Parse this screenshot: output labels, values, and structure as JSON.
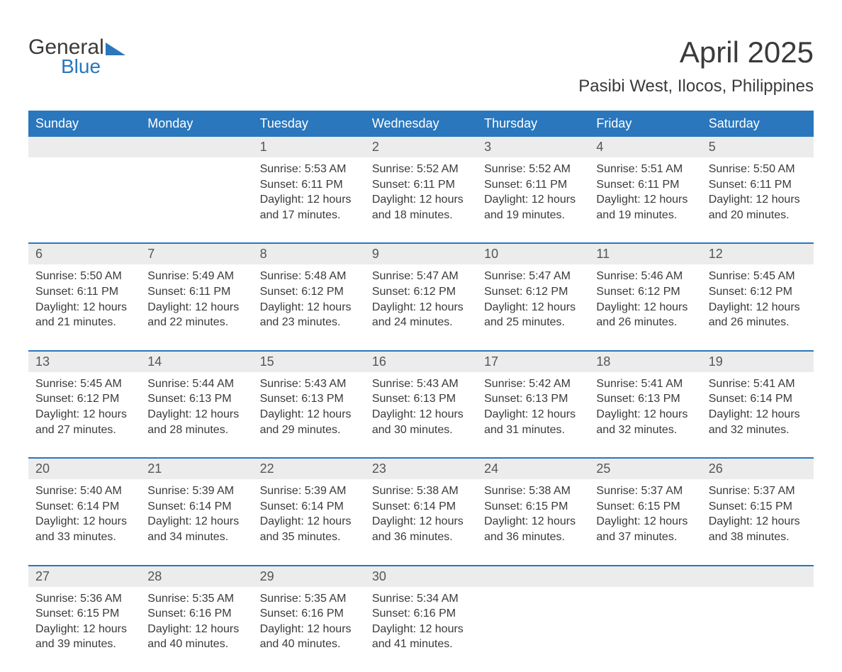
{
  "logo": {
    "text1": "General",
    "text2": "Blue"
  },
  "title": "April 2025",
  "subtitle": "Pasibi West, Ilocos, Philippines",
  "colors": {
    "header_bg": "#2a77bd",
    "header_text": "#ffffff",
    "daynum_bg": "#ececec",
    "week_border": "#2a77bd",
    "body_text": "#3a3a3a",
    "page_bg": "#ffffff",
    "logo_blue": "#2a77bd"
  },
  "typography": {
    "title_fontsize": 42,
    "subtitle_fontsize": 24,
    "dow_fontsize": 18,
    "daynum_fontsize": 18,
    "body_fontsize": 16
  },
  "days_of_week": [
    "Sunday",
    "Monday",
    "Tuesday",
    "Wednesday",
    "Thursday",
    "Friday",
    "Saturday"
  ],
  "weeks": [
    [
      null,
      null,
      {
        "n": "1",
        "sunrise": "5:53 AM",
        "sunset": "6:11 PM",
        "daylight": "12 hours and 17 minutes."
      },
      {
        "n": "2",
        "sunrise": "5:52 AM",
        "sunset": "6:11 PM",
        "daylight": "12 hours and 18 minutes."
      },
      {
        "n": "3",
        "sunrise": "5:52 AM",
        "sunset": "6:11 PM",
        "daylight": "12 hours and 19 minutes."
      },
      {
        "n": "4",
        "sunrise": "5:51 AM",
        "sunset": "6:11 PM",
        "daylight": "12 hours and 19 minutes."
      },
      {
        "n": "5",
        "sunrise": "5:50 AM",
        "sunset": "6:11 PM",
        "daylight": "12 hours and 20 minutes."
      }
    ],
    [
      {
        "n": "6",
        "sunrise": "5:50 AM",
        "sunset": "6:11 PM",
        "daylight": "12 hours and 21 minutes."
      },
      {
        "n": "7",
        "sunrise": "5:49 AM",
        "sunset": "6:11 PM",
        "daylight": "12 hours and 22 minutes."
      },
      {
        "n": "8",
        "sunrise": "5:48 AM",
        "sunset": "6:12 PM",
        "daylight": "12 hours and 23 minutes."
      },
      {
        "n": "9",
        "sunrise": "5:47 AM",
        "sunset": "6:12 PM",
        "daylight": "12 hours and 24 minutes."
      },
      {
        "n": "10",
        "sunrise": "5:47 AM",
        "sunset": "6:12 PM",
        "daylight": "12 hours and 25 minutes."
      },
      {
        "n": "11",
        "sunrise": "5:46 AM",
        "sunset": "6:12 PM",
        "daylight": "12 hours and 26 minutes."
      },
      {
        "n": "12",
        "sunrise": "5:45 AM",
        "sunset": "6:12 PM",
        "daylight": "12 hours and 26 minutes."
      }
    ],
    [
      {
        "n": "13",
        "sunrise": "5:45 AM",
        "sunset": "6:12 PM",
        "daylight": "12 hours and 27 minutes."
      },
      {
        "n": "14",
        "sunrise": "5:44 AM",
        "sunset": "6:13 PM",
        "daylight": "12 hours and 28 minutes."
      },
      {
        "n": "15",
        "sunrise": "5:43 AM",
        "sunset": "6:13 PM",
        "daylight": "12 hours and 29 minutes."
      },
      {
        "n": "16",
        "sunrise": "5:43 AM",
        "sunset": "6:13 PM",
        "daylight": "12 hours and 30 minutes."
      },
      {
        "n": "17",
        "sunrise": "5:42 AM",
        "sunset": "6:13 PM",
        "daylight": "12 hours and 31 minutes."
      },
      {
        "n": "18",
        "sunrise": "5:41 AM",
        "sunset": "6:13 PM",
        "daylight": "12 hours and 32 minutes."
      },
      {
        "n": "19",
        "sunrise": "5:41 AM",
        "sunset": "6:14 PM",
        "daylight": "12 hours and 32 minutes."
      }
    ],
    [
      {
        "n": "20",
        "sunrise": "5:40 AM",
        "sunset": "6:14 PM",
        "daylight": "12 hours and 33 minutes."
      },
      {
        "n": "21",
        "sunrise": "5:39 AM",
        "sunset": "6:14 PM",
        "daylight": "12 hours and 34 minutes."
      },
      {
        "n": "22",
        "sunrise": "5:39 AM",
        "sunset": "6:14 PM",
        "daylight": "12 hours and 35 minutes."
      },
      {
        "n": "23",
        "sunrise": "5:38 AM",
        "sunset": "6:14 PM",
        "daylight": "12 hours and 36 minutes."
      },
      {
        "n": "24",
        "sunrise": "5:38 AM",
        "sunset": "6:15 PM",
        "daylight": "12 hours and 36 minutes."
      },
      {
        "n": "25",
        "sunrise": "5:37 AM",
        "sunset": "6:15 PM",
        "daylight": "12 hours and 37 minutes."
      },
      {
        "n": "26",
        "sunrise": "5:37 AM",
        "sunset": "6:15 PM",
        "daylight": "12 hours and 38 minutes."
      }
    ],
    [
      {
        "n": "27",
        "sunrise": "5:36 AM",
        "sunset": "6:15 PM",
        "daylight": "12 hours and 39 minutes."
      },
      {
        "n": "28",
        "sunrise": "5:35 AM",
        "sunset": "6:16 PM",
        "daylight": "12 hours and 40 minutes."
      },
      {
        "n": "29",
        "sunrise": "5:35 AM",
        "sunset": "6:16 PM",
        "daylight": "12 hours and 40 minutes."
      },
      {
        "n": "30",
        "sunrise": "5:34 AM",
        "sunset": "6:16 PM",
        "daylight": "12 hours and 41 minutes."
      },
      null,
      null,
      null
    ]
  ],
  "labels": {
    "sunrise": "Sunrise: ",
    "sunset": "Sunset: ",
    "daylight": "Daylight: "
  }
}
